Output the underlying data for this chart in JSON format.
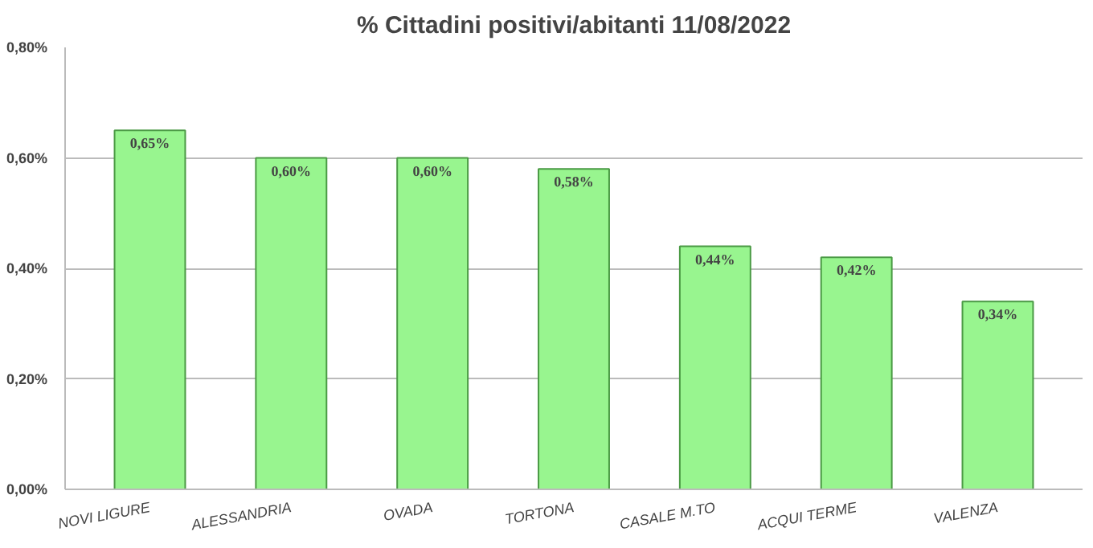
{
  "chart_data": {
    "type": "bar",
    "title": "% Cittadini positivi/abitanti 11/08/2022",
    "categories": [
      "NOVI LIGURE",
      "ALESSANDRIA",
      "OVADA",
      "TORTONA",
      "CASALE M.TO",
      "ACQUI TERME",
      "VALENZA"
    ],
    "values": [
      0.65,
      0.6,
      0.6,
      0.58,
      0.44,
      0.42,
      0.34
    ],
    "value_labels": [
      "0,65%",
      "0,60%",
      "0,60%",
      "0,58%",
      "0,44%",
      "0,42%",
      "0,34%"
    ],
    "color": "#98f58f",
    "ylim": [
      0,
      0.8
    ],
    "yticks": [
      {
        "value": 0,
        "label": "0,00%"
      },
      {
        "value": 0.2,
        "label": "0,20%"
      },
      {
        "value": 0.4,
        "label": "0,40%"
      },
      {
        "value": 0.6,
        "label": "0,60%"
      },
      {
        "value": 0.8,
        "label": "0,80%"
      }
    ],
    "grid": "y"
  }
}
